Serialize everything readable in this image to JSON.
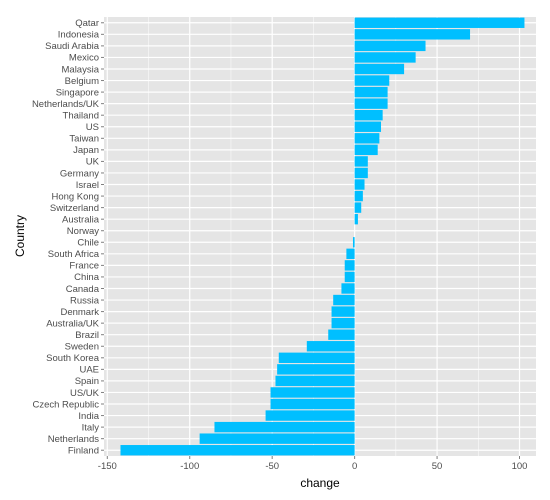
{
  "chart_data": {
    "type": "bar",
    "orientation": "horizontal",
    "xlabel": "change",
    "ylabel": "Country",
    "xlim": [
      -152,
      110
    ],
    "xticks": [
      -150,
      -100,
      -50,
      0,
      50,
      100
    ],
    "xtick_labels": [
      "-150",
      "-100",
      "-50",
      "0",
      "50",
      "100"
    ],
    "grid": true,
    "legend": "none",
    "bar_color": "#00BFFF",
    "panel_color": "#E5E5E5",
    "grid_color": "#FFFFFF",
    "categories": [
      "Qatar",
      "Indonesia",
      "Saudi Arabia",
      "Mexico",
      "Malaysia",
      "Belgium",
      "Singapore",
      "Netherlands/UK",
      "Thailand",
      "US",
      "Taiwan",
      "Japan",
      "UK",
      "Germany",
      "Israel",
      "Hong Kong",
      "Switzerland",
      "Australia",
      "Norway",
      "Chile",
      "South Africa",
      "France",
      "China",
      "Canada",
      "Russia",
      "Denmark",
      "Australia/UK",
      "Brazil",
      "Sweden",
      "South Korea",
      "UAE",
      "Spain",
      "US/UK",
      "Czech Republic",
      "India",
      "Italy",
      "Netherlands",
      "Finland"
    ],
    "values": [
      103,
      70,
      43,
      37,
      30,
      21,
      20,
      20,
      17,
      16,
      15,
      14,
      8,
      8,
      6,
      5,
      4,
      2,
      0,
      -1,
      -5,
      -6,
      -6,
      -8,
      -13,
      -14,
      -14,
      -16,
      -29,
      -46,
      -47,
      -48,
      -51,
      -51,
      -54,
      -85,
      -94,
      -142
    ]
  }
}
